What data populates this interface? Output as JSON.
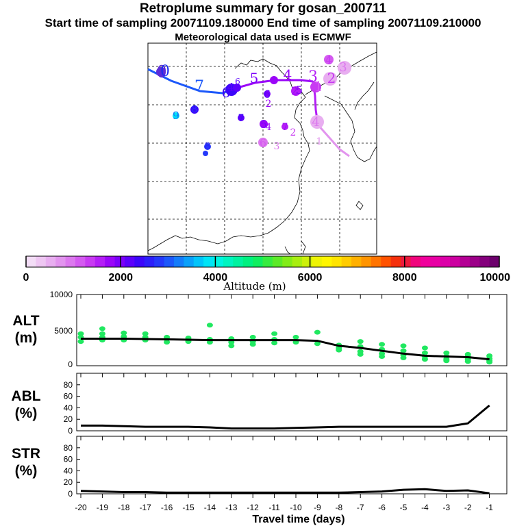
{
  "header": {
    "title": "Retroplume summary for gosan_200711",
    "times": "Start time of sampling 20071109.180000     End time of sampling 20071109.210000",
    "met": "Meteorological data used is ECMWF"
  },
  "colorbar": {
    "axis_label": "Altitude (m)",
    "range": [
      0,
      10000
    ],
    "tick_labels": [
      "0",
      "2000",
      "4000",
      "6000",
      "8000",
      "10000"
    ],
    "colors": [
      "#f3ddf6",
      "#eec6f2",
      "#e8aef0",
      "#e294ee",
      "#dc78ee",
      "#d45af0",
      "#c83af2",
      "#b41ef6",
      "#9a06f8",
      "#7c00fa",
      "#5c00fc",
      "#3c06fa",
      "#2c1efa",
      "#2438fa",
      "#1c58fa",
      "#147cfa",
      "#0aa0fa",
      "#02c4fa",
      "#00e4f6",
      "#00f4e0",
      "#00f4c0",
      "#00f2a0",
      "#00f080",
      "#10ee60",
      "#36ec40",
      "#5cea28",
      "#82ec18",
      "#a8ee10",
      "#ccf00a",
      "#eef404",
      "#fff600",
      "#ffe400",
      "#ffcc00",
      "#ffb000",
      "#ff9400",
      "#ff7400",
      "#ff5200",
      "#f4300c",
      "#ec1a3c",
      "#f0047c",
      "#f0009c",
      "#e800a4",
      "#dc00a8",
      "#cc00a0",
      "#b40094",
      "#9c0088",
      "#84007c",
      "#6c006c"
    ]
  },
  "map": {
    "labels": [
      {
        "t": "0",
        "x": 50,
        "y": 37,
        "c": "#5c2cd8",
        "s": 24
      },
      {
        "t": "0",
        "x": 52,
        "y": 40,
        "c": "#1c2cf0",
        "s": 22
      },
      {
        "t": "7",
        "x": 270,
        "y": 38,
        "c": "#1c58fa",
        "s": 22
      },
      {
        "t": "6",
        "x": 330,
        "y": 40,
        "c": "#3c06fa",
        "s": 20
      },
      {
        "t": "5",
        "x": 373,
        "y": 45,
        "c": "#7c00fa",
        "s": 20
      },
      {
        "t": "4",
        "x": 420,
        "y": 65,
        "c": "#9a06f8",
        "s": 20
      },
      {
        "t": "3",
        "x": 457,
        "y": 64,
        "c": "#b41ef6",
        "s": 22
      },
      {
        "t": "2",
        "x": 482,
        "y": 55,
        "c": "#c83af2",
        "s": 20
      },
      {
        "t": "1",
        "x": 467,
        "y": 34,
        "c": "#d45af0",
        "s": 20
      },
      {
        "t": "9",
        "x": 257,
        "y": 8,
        "c": "#147cfa",
        "s": 16
      },
      {
        "t": "8",
        "x": 284,
        "y": 14,
        "c": "#2438fa",
        "s": 14
      },
      {
        "t": "7",
        "x": 352,
        "y": 8,
        "c": "#3c06fa",
        "s": 14
      },
      {
        "t": "6",
        "x": 390,
        "y": 30,
        "c": "#5c00fc",
        "s": 16
      },
      {
        "t": "2",
        "x": 392,
        "y": 15,
        "c": "#9a06f8",
        "s": 14
      },
      {
        "t": "5",
        "x": 385,
        "y": -5,
        "c": "#7c00fa",
        "s": 16
      },
      {
        "t": "4",
        "x": 392,
        "y": -8,
        "c": "#9a06f8",
        "s": 14
      },
      {
        "t": "7",
        "x": 416,
        "y": -6,
        "c": "#9a06f8",
        "s": 14
      },
      {
        "t": "2",
        "x": 428,
        "y": -14,
        "c": "#c83af2",
        "s": 14
      },
      {
        "t": "6",
        "x": 384,
        "y": -28,
        "c": "#d45af0",
        "s": 16
      },
      {
        "t": "3",
        "x": 404,
        "y": -28,
        "c": "#dc78ee",
        "s": 14
      },
      {
        "t": "4",
        "x": 460,
        "y": -2,
        "c": "#dc78ee",
        "s": 18
      },
      {
        "t": "1",
        "x": 468,
        "y": -18,
        "c": "#e294ee",
        "s": 14
      },
      {
        "t": "8",
        "x": 303,
        "y": -32,
        "c": "#2c1efa",
        "s": 14
      },
      {
        "t": "4",
        "x": 480,
        "y": 78,
        "c": "#c83af2",
        "s": 16
      },
      {
        "t": "3",
        "x": 502,
        "y": 68,
        "c": "#dc78ee",
        "s": 18
      },
      {
        "t": "5",
        "x": 436,
        "y": 37,
        "c": "#7c00fa",
        "s": 16
      },
      {
        "t": "2",
        "x": 430,
        "y": 38,
        "c": "#9a06f8",
        "s": 16
      },
      {
        "t": "4",
        "x": 337,
        "y": 42,
        "c": "#5c00fc",
        "s": 16
      },
      {
        "t": "6",
        "x": 346,
        "y": 50,
        "c": "#5c00fc",
        "s": 12
      }
    ]
  },
  "panels": {
    "alt_label": [
      "ALT",
      "(m)"
    ],
    "abl_label": [
      "ABL",
      "(%)"
    ],
    "str_label": [
      "STR",
      "(%)"
    ],
    "alt_ticks": [
      "10000",
      "5000",
      "0"
    ],
    "pct_ticks": [
      "80",
      "60",
      "40",
      "20",
      "0"
    ],
    "x_tick_labels": [
      "-20",
      "-19",
      "-18",
      "-17",
      "-16",
      "-15",
      "-14",
      "-13",
      "-12",
      "-11",
      "-10",
      "-9",
      "-8",
      "-7",
      "-6",
      "-5",
      "-4",
      "-3",
      "-2",
      "-1"
    ],
    "x_axis_label": "Travel time (days)"
  },
  "chart_data": [
    {
      "type": "line",
      "title": "ALT (m)",
      "xlabel": "Travel time (days)",
      "ylabel": "ALT (m)",
      "ylim": [
        0,
        10000
      ],
      "xlim": [
        -20,
        0
      ],
      "x": [
        -20,
        -19,
        -18,
        -17,
        -16,
        -15,
        -14,
        -13,
        -12,
        -11,
        -10,
        -9,
        -8,
        -7,
        -6,
        -5,
        -4,
        -3,
        -2,
        -1
      ],
      "series": [
        {
          "name": "mean altitude",
          "values": [
            3800,
            3800,
            3800,
            3750,
            3700,
            3650,
            3600,
            3600,
            3600,
            3600,
            3600,
            3500,
            2800,
            2500,
            2100,
            1700,
            1400,
            1300,
            1200,
            900
          ]
        },
        {
          "name": "particle altitudes",
          "type": "scatter",
          "values": [
            [
              -20,
              4500
            ],
            [
              -20,
              4000
            ],
            [
              -20,
              3400
            ],
            [
              -19,
              5200
            ],
            [
              -19,
              4500
            ],
            [
              -19,
              4000
            ],
            [
              -19,
              3600
            ],
            [
              -18,
              4600
            ],
            [
              -18,
              4100
            ],
            [
              -18,
              3600
            ],
            [
              -17,
              4500
            ],
            [
              -17,
              4000
            ],
            [
              -17,
              3600
            ],
            [
              -16,
              4000
            ],
            [
              -16,
              3700
            ],
            [
              -16,
              3300
            ],
            [
              -15,
              3900
            ],
            [
              -15,
              3400
            ],
            [
              -14,
              5700
            ],
            [
              -14,
              3700
            ],
            [
              -14,
              3300
            ],
            [
              -13,
              3800
            ],
            [
              -13,
              3300
            ],
            [
              -13,
              2800
            ],
            [
              -12,
              4000
            ],
            [
              -12,
              3400
            ],
            [
              -12,
              3000
            ],
            [
              -11,
              4500
            ],
            [
              -11,
              3700
            ],
            [
              -11,
              3200
            ],
            [
              -10,
              4000
            ],
            [
              -10,
              3300
            ],
            [
              -9,
              4700
            ],
            [
              -9,
              3100
            ],
            [
              -8,
              2900
            ],
            [
              -8,
              2500
            ],
            [
              -8,
              2200
            ],
            [
              -7,
              3400
            ],
            [
              -7,
              2700
            ],
            [
              -7,
              2000
            ],
            [
              -7,
              1600
            ],
            [
              -6,
              3000
            ],
            [
              -6,
              2300
            ],
            [
              -6,
              1700
            ],
            [
              -6,
              1300
            ],
            [
              -5,
              2800
            ],
            [
              -5,
              2100
            ],
            [
              -5,
              1500
            ],
            [
              -5,
              1100
            ],
            [
              -4,
              2500
            ],
            [
              -4,
              1800
            ],
            [
              -4,
              1300
            ],
            [
              -4,
              900
            ],
            [
              -3,
              1800
            ],
            [
              -3,
              1300
            ],
            [
              -3,
              900
            ],
            [
              -3,
              700
            ],
            [
              -2,
              1600
            ],
            [
              -2,
              1300
            ],
            [
              -2,
              900
            ],
            [
              -2,
              600
            ],
            [
              -1,
              1400
            ],
            [
              -1,
              1000
            ],
            [
              -1,
              700
            ],
            [
              -1,
              500
            ]
          ]
        }
      ]
    },
    {
      "type": "line",
      "title": "ABL (%)",
      "xlabel": "Travel time (days)",
      "ylabel": "ABL (%)",
      "ylim": [
        0,
        100
      ],
      "xlim": [
        -20,
        0
      ],
      "x": [
        -20,
        -19,
        -18,
        -17,
        -16,
        -15,
        -14,
        -13,
        -12,
        -11,
        -10,
        -9,
        -8,
        -7,
        -6,
        -5,
        -4,
        -3,
        -2,
        -1
      ],
      "series": [
        {
          "name": "ABL",
          "values": [
            9,
            9,
            8,
            7,
            7,
            7,
            6,
            4,
            4,
            4,
            5,
            6,
            7,
            7,
            7,
            7,
            7,
            7,
            13,
            44
          ]
        }
      ]
    },
    {
      "type": "line",
      "title": "STR (%)",
      "xlabel": "Travel time (days)",
      "ylabel": "STR (%)",
      "ylim": [
        0,
        100
      ],
      "xlim": [
        -20,
        0
      ],
      "x": [
        -20,
        -19,
        -18,
        -17,
        -16,
        -15,
        -14,
        -13,
        -12,
        -11,
        -10,
        -9,
        -8,
        -7,
        -6,
        -5,
        -4,
        -3,
        -2,
        -1
      ],
      "series": [
        {
          "name": "STR",
          "values": [
            5,
            4,
            3,
            3,
            2,
            2,
            2,
            2,
            2,
            2,
            2,
            2,
            2,
            3,
            4,
            7,
            8,
            5,
            6,
            1
          ]
        }
      ]
    }
  ]
}
